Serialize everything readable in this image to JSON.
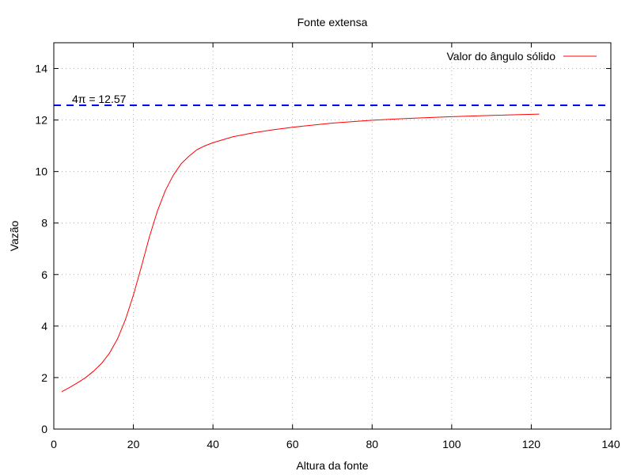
{
  "chart_data": {
    "type": "line",
    "title": "Fonte extensa",
    "xlabel": "Altura da fonte",
    "ylabel": "Vazão",
    "xlim": [
      0,
      140
    ],
    "ylim": [
      0,
      15
    ],
    "xticks": [
      0,
      20,
      40,
      60,
      80,
      100,
      120,
      140
    ],
    "yticks": [
      0,
      2,
      4,
      6,
      8,
      10,
      12,
      14
    ],
    "grid": true,
    "legend_position": "top-right",
    "series": [
      {
        "name": "Valor do ângulo sólido",
        "color": "#ff0000",
        "x": [
          2,
          4,
          6,
          8,
          10,
          12,
          14,
          16,
          18,
          20,
          22,
          24,
          26,
          28,
          30,
          32,
          34,
          36,
          38,
          40,
          45,
          50,
          55,
          60,
          70,
          80,
          90,
          100,
          110,
          122
        ],
        "y": [
          1.45,
          1.62,
          1.8,
          2.0,
          2.25,
          2.55,
          2.95,
          3.5,
          4.25,
          5.2,
          6.3,
          7.45,
          8.45,
          9.25,
          9.85,
          10.3,
          10.6,
          10.85,
          11.0,
          11.12,
          11.35,
          11.5,
          11.62,
          11.72,
          11.88,
          11.99,
          12.07,
          12.13,
          12.18,
          12.23
        ]
      }
    ],
    "reference_line": {
      "y": 12.57,
      "label": "4π = 12.57",
      "color": "#0000ff",
      "style": "dashed"
    }
  }
}
